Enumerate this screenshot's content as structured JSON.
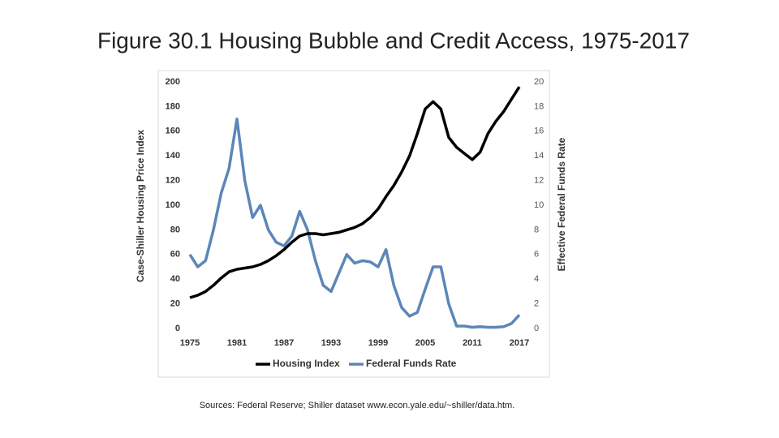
{
  "chart_data": {
    "type": "line",
    "title": "Figure 30.1 Housing Bubble and Credit Access, 1975-2017",
    "source": "Sources: Federal Reserve; Shiller dataset www.econ.yale.edu/~shiller/data.htm.",
    "ylabel": "Case-Shiller Housing Price Index",
    "y2label": "Effective Federal Funds Rate",
    "x": [
      1975,
      1976,
      1977,
      1978,
      1979,
      1980,
      1981,
      1982,
      1983,
      1984,
      1985,
      1986,
      1987,
      1988,
      1989,
      1990,
      1991,
      1992,
      1993,
      1994,
      1995,
      1996,
      1997,
      1998,
      1999,
      2000,
      2001,
      2002,
      2003,
      2004,
      2005,
      2006,
      2007,
      2008,
      2009,
      2010,
      2011,
      2012,
      2013,
      2014,
      2015,
      2016,
      2017
    ],
    "series": [
      {
        "name": "Housing Index",
        "color": "#000000",
        "values": [
          25,
          27,
          30,
          35,
          41,
          46,
          48,
          49,
          50,
          52,
          55,
          59,
          64,
          70,
          75,
          77,
          77,
          76,
          77,
          78,
          80,
          82,
          85,
          90,
          97,
          107,
          116,
          127,
          140,
          158,
          178,
          184,
          178,
          155,
          147,
          142,
          137,
          143,
          158,
          168,
          176,
          186,
          196
        ]
      },
      {
        "name": "Federal Funds Rate",
        "color": "#5b87b8",
        "axis": "y2",
        "values": [
          6,
          5,
          5.5,
          8,
          11,
          13,
          17,
          12,
          9,
          10,
          8,
          7,
          6.7,
          7.5,
          9.5,
          8,
          5.5,
          3.5,
          3,
          4.5,
          6,
          5.3,
          5.5,
          5.4,
          5,
          6.4,
          3.5,
          1.7,
          1,
          1.3,
          3.2,
          5,
          5,
          2,
          0.2,
          0.2,
          0.1,
          0.15,
          0.1,
          0.1,
          0.15,
          0.4,
          1.1
        ]
      }
    ],
    "xlim": [
      1975,
      2017
    ],
    "xticks": [
      1975,
      1981,
      1987,
      1993,
      1999,
      2005,
      2011,
      2017
    ],
    "ylim": [
      0,
      200
    ],
    "yticks": [
      0,
      20,
      40,
      60,
      80,
      100,
      120,
      140,
      160,
      180,
      200
    ],
    "y2lim": [
      0,
      20
    ],
    "y2ticks": [
      0,
      2,
      4,
      6,
      8,
      10,
      12,
      14,
      16,
      18,
      20
    ],
    "legend": "bottom"
  }
}
